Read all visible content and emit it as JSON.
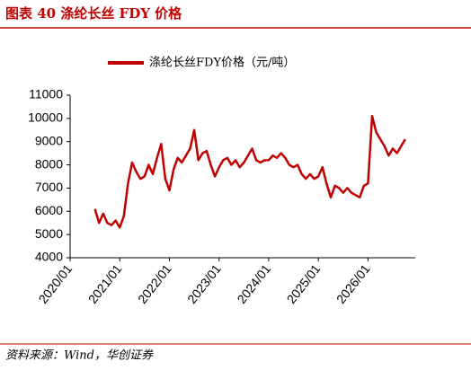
{
  "title": "图表 40 涤纶长丝 FDY 价格",
  "source": "资料来源：Wind，华创证券",
  "chart_data": {
    "type": "line",
    "x": [
      "2020/07",
      "2020/08",
      "2020/09",
      "2020/10",
      "2020/11",
      "2020/12",
      "2021/01",
      "2021/02",
      "2021/03",
      "2021/04",
      "2021/05",
      "2021/06",
      "2021/07",
      "2021/08",
      "2021/09",
      "2021/10",
      "2021/11",
      "2021/12",
      "2022/01",
      "2022/02",
      "2022/03",
      "2022/04",
      "2022/05",
      "2022/06",
      "2022/07",
      "2022/08",
      "2022/09",
      "2022/10",
      "2022/11",
      "2022/12",
      "2023/01",
      "2023/02",
      "2023/03",
      "2023/04",
      "2023/05",
      "2023/06",
      "2023/07",
      "2023/08",
      "2023/09",
      "2023/10",
      "2023/11",
      "2023/12",
      "2024/01",
      "2024/02",
      "2024/03",
      "2024/04",
      "2024/05",
      "2024/06",
      "2024/07",
      "2024/08",
      "2024/09",
      "2024/10",
      "2024/11",
      "2024/12",
      "2025/01",
      "2025/02",
      "2025/03",
      "2025/04",
      "2025/05",
      "2025/06",
      "2025/07",
      "2025/08",
      "2025/09",
      "2025/10",
      "2025/11",
      "2025/12",
      "2026/01",
      "2026/02",
      "2026/03",
      "2026/04",
      "2026/05",
      "2026/06",
      "2026/07",
      "2026/08",
      "2026/09",
      "2026/10"
    ],
    "series": [
      {
        "name": "涤纶长丝FDY价格（元/吨）",
        "color": "#c00000",
        "values": [
          6100,
          5500,
          5900,
          5500,
          5400,
          5600,
          5300,
          5800,
          7200,
          8100,
          7700,
          7400,
          7500,
          8000,
          7600,
          8300,
          8900,
          7400,
          6900,
          7800,
          8300,
          8100,
          8400,
          8700,
          9500,
          8200,
          8500,
          8600,
          8000,
          7500,
          7900,
          8200,
          8300,
          8000,
          8200,
          7900,
          8100,
          8400,
          8700,
          8200,
          8100,
          8200,
          8200,
          8400,
          8300,
          8500,
          8300,
          8000,
          7900,
          8000,
          7600,
          7400,
          7600,
          7400,
          7500,
          7900,
          7200,
          6600,
          7100,
          7000,
          6800,
          7000,
          6800,
          6700,
          6600,
          7100,
          7200,
          10100,
          9400,
          9100,
          8800,
          8400,
          8700,
          8500,
          8800,
          9100
        ]
      }
    ],
    "xlim": [
      "2020/01",
      "2026/12"
    ],
    "xticks": [
      "2020/01",
      "2021/01",
      "2022/01",
      "2023/01",
      "2024/01",
      "2025/01",
      "2026/01"
    ],
    "ylim": [
      4000,
      11000
    ],
    "yticks": [
      4000,
      5000,
      6000,
      7000,
      8000,
      9000,
      10000,
      11000
    ],
    "legend": "top"
  }
}
